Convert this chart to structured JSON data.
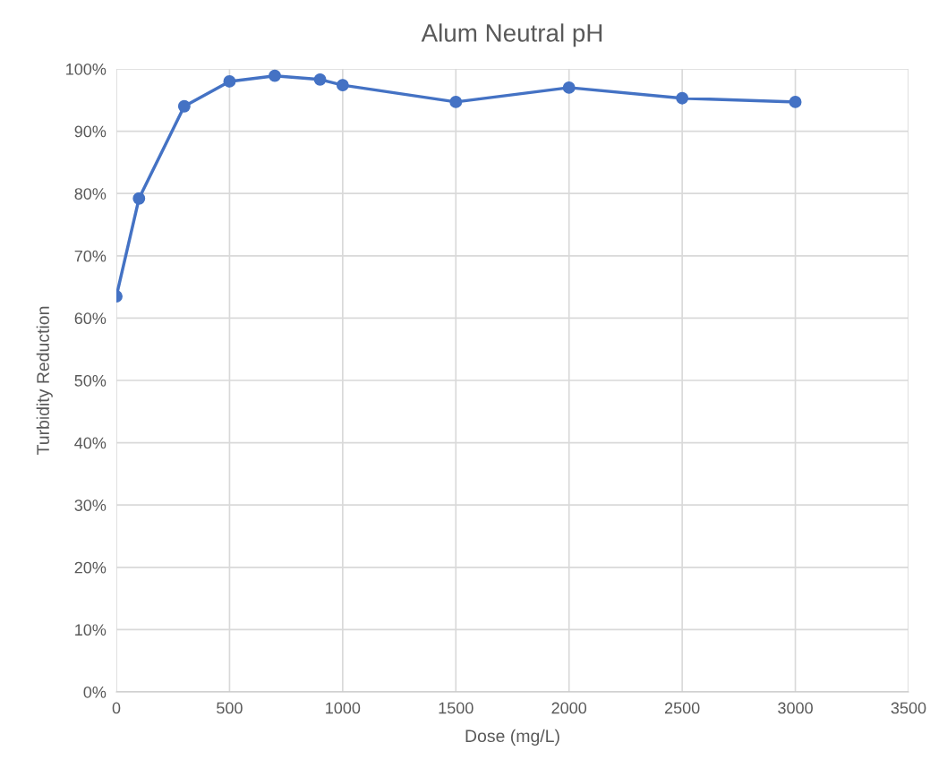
{
  "chart_data": {
    "type": "line",
    "title": "Alum Neutral pH",
    "xlabel": "Dose (mg/L)",
    "ylabel": "Turbidity Reduction",
    "x": [
      0,
      100,
      300,
      500,
      700,
      900,
      1000,
      1500,
      2000,
      2500,
      3000
    ],
    "series": [
      {
        "color": "#4472c4",
        "values": [
          63.5,
          79.2,
          94.0,
          98.0,
          98.9,
          98.3,
          97.4,
          94.7,
          97.0,
          95.3,
          94.7
        ]
      }
    ],
    "xlim": [
      0,
      3500
    ],
    "xticks": [
      0,
      500,
      1000,
      1500,
      2000,
      2500,
      3000,
      3500
    ],
    "ylim": [
      0,
      100
    ],
    "yticks": [
      {
        "value": 0,
        "label": "0%"
      },
      {
        "value": 10,
        "label": "10%"
      },
      {
        "value": 20,
        "label": "20%"
      },
      {
        "value": 30,
        "label": "30%"
      },
      {
        "value": 40,
        "label": "40%"
      },
      {
        "value": 50,
        "label": "50%"
      },
      {
        "value": 60,
        "label": "60%"
      },
      {
        "value": 70,
        "label": "70%"
      },
      {
        "value": 80,
        "label": "80%"
      },
      {
        "value": 90,
        "label": "90%"
      },
      {
        "value": 100,
        "label": "100%"
      }
    ],
    "grid": true,
    "marker": "circle",
    "line_style": "solid"
  }
}
